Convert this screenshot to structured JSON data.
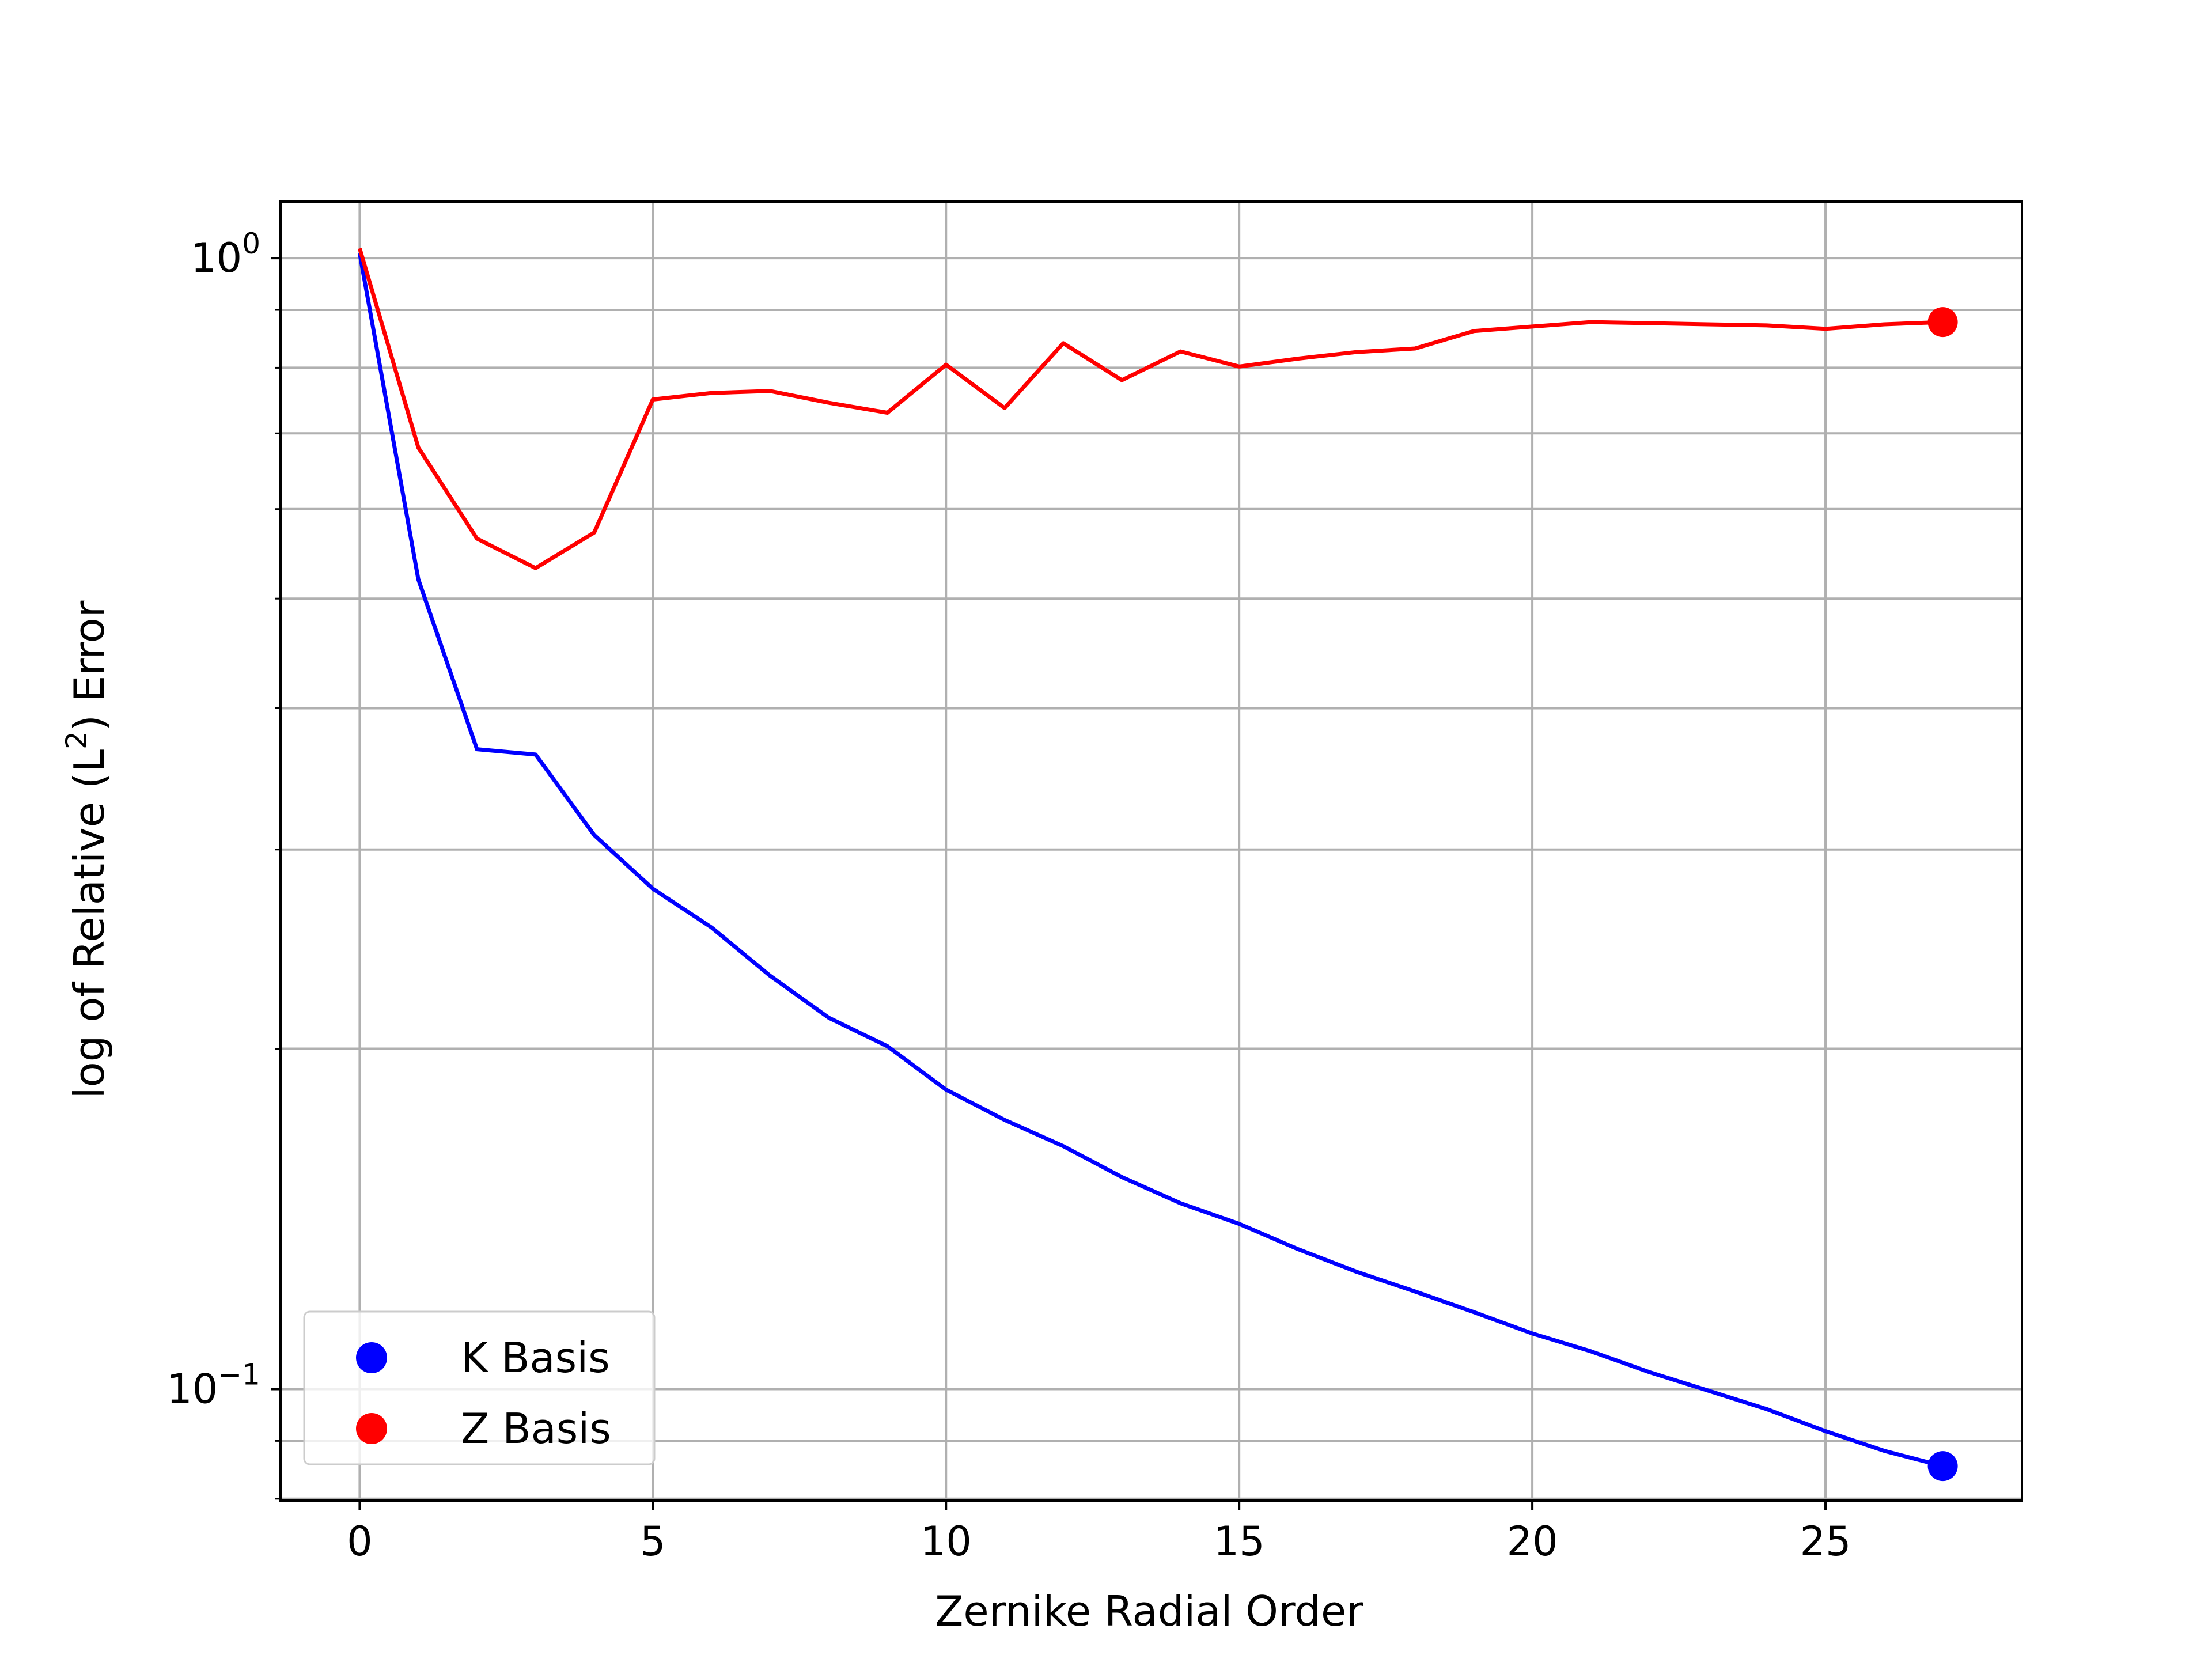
{
  "chart_data": {
    "type": "line",
    "xlabel": "Zernike Radial Order",
    "ylabel": {
      "prefix": "log of Relative (L",
      "sup": "2",
      "suffix": ") Error"
    },
    "xscale": "linear",
    "yscale": "log",
    "xlim": [
      -1.35,
      28.35
    ],
    "ylim": [
      0.0797,
      1.122
    ],
    "x_ticks": [
      0,
      5,
      10,
      15,
      20,
      25
    ],
    "y_major_ticks": [
      {
        "value": 1.0,
        "base": "10",
        "exp": "0"
      },
      {
        "value": 0.1,
        "base": "10",
        "exp": "−1"
      }
    ],
    "grid": true,
    "legend": {
      "position": "lower-left",
      "entries": [
        "K Basis",
        "Z Basis"
      ]
    },
    "series": [
      {
        "name": "K Basis",
        "color": "#0000ff",
        "x": [
          0,
          1,
          2,
          3,
          4,
          5,
          6,
          7,
          8,
          9,
          10,
          11,
          12,
          13,
          14,
          15,
          16,
          17,
          18,
          19,
          20,
          21,
          22,
          23,
          24,
          25,
          26,
          27
        ],
        "values": [
          1.01,
          0.52,
          0.368,
          0.364,
          0.309,
          0.277,
          0.256,
          0.232,
          0.213,
          0.201,
          0.184,
          0.173,
          0.164,
          0.154,
          0.146,
          0.14,
          0.133,
          0.127,
          0.122,
          0.117,
          0.112,
          0.108,
          0.1035,
          0.0997,
          0.096,
          0.0918,
          0.0882,
          0.0855
        ],
        "end_marker": true
      },
      {
        "name": "Z Basis",
        "color": "#ff0000",
        "x": [
          0,
          1,
          2,
          3,
          4,
          5,
          6,
          7,
          8,
          9,
          10,
          11,
          12,
          13,
          14,
          15,
          16,
          17,
          18,
          19,
          20,
          21,
          22,
          23,
          24,
          25,
          26,
          27
        ],
        "values": [
          1.02,
          0.68,
          0.565,
          0.532,
          0.572,
          0.75,
          0.76,
          0.763,
          0.745,
          0.73,
          0.805,
          0.737,
          0.841,
          0.78,
          0.827,
          0.802,
          0.815,
          0.826,
          0.832,
          0.862,
          0.87,
          0.878,
          0.876,
          0.874,
          0.872,
          0.866,
          0.874,
          0.878
        ],
        "end_marker": true
      }
    ]
  }
}
